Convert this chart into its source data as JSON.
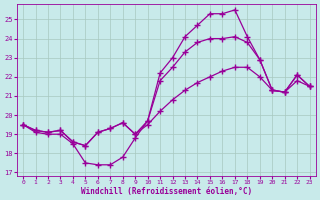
{
  "xlabel": "Windchill (Refroidissement éolien,°C)",
  "xlim": [
    -0.5,
    23.5
  ],
  "ylim": [
    16.8,
    25.8
  ],
  "yticks": [
    17,
    18,
    19,
    20,
    21,
    22,
    23,
    24,
    25
  ],
  "xticks": [
    0,
    1,
    2,
    3,
    4,
    5,
    6,
    7,
    8,
    9,
    10,
    11,
    12,
    13,
    14,
    15,
    16,
    17,
    18,
    19,
    20,
    21,
    22,
    23
  ],
  "bg_color": "#c8eaea",
  "line_color": "#990099",
  "grid_color": "#a8c8c0",
  "line1_y": [
    19.5,
    19.1,
    19.0,
    19.0,
    18.5,
    17.5,
    17.4,
    17.4,
    17.8,
    18.8,
    19.7,
    22.2,
    23.0,
    24.1,
    24.7,
    25.3,
    25.3,
    25.5,
    24.1,
    22.9,
    21.3,
    21.2,
    22.1,
    21.5
  ],
  "line2_y": [
    19.5,
    19.2,
    19.1,
    19.2,
    18.6,
    18.4,
    19.1,
    19.3,
    19.6,
    19.0,
    19.7,
    21.8,
    22.5,
    23.3,
    23.8,
    24.0,
    24.0,
    24.1,
    23.8,
    22.9,
    21.3,
    21.2,
    22.1,
    21.5
  ],
  "line3_y": [
    19.5,
    19.2,
    19.1,
    19.2,
    18.6,
    18.4,
    19.1,
    19.3,
    19.6,
    19.0,
    19.5,
    20.2,
    20.8,
    21.3,
    21.7,
    22.0,
    22.3,
    22.5,
    22.5,
    22.0,
    21.3,
    21.2,
    21.8,
    21.5
  ]
}
